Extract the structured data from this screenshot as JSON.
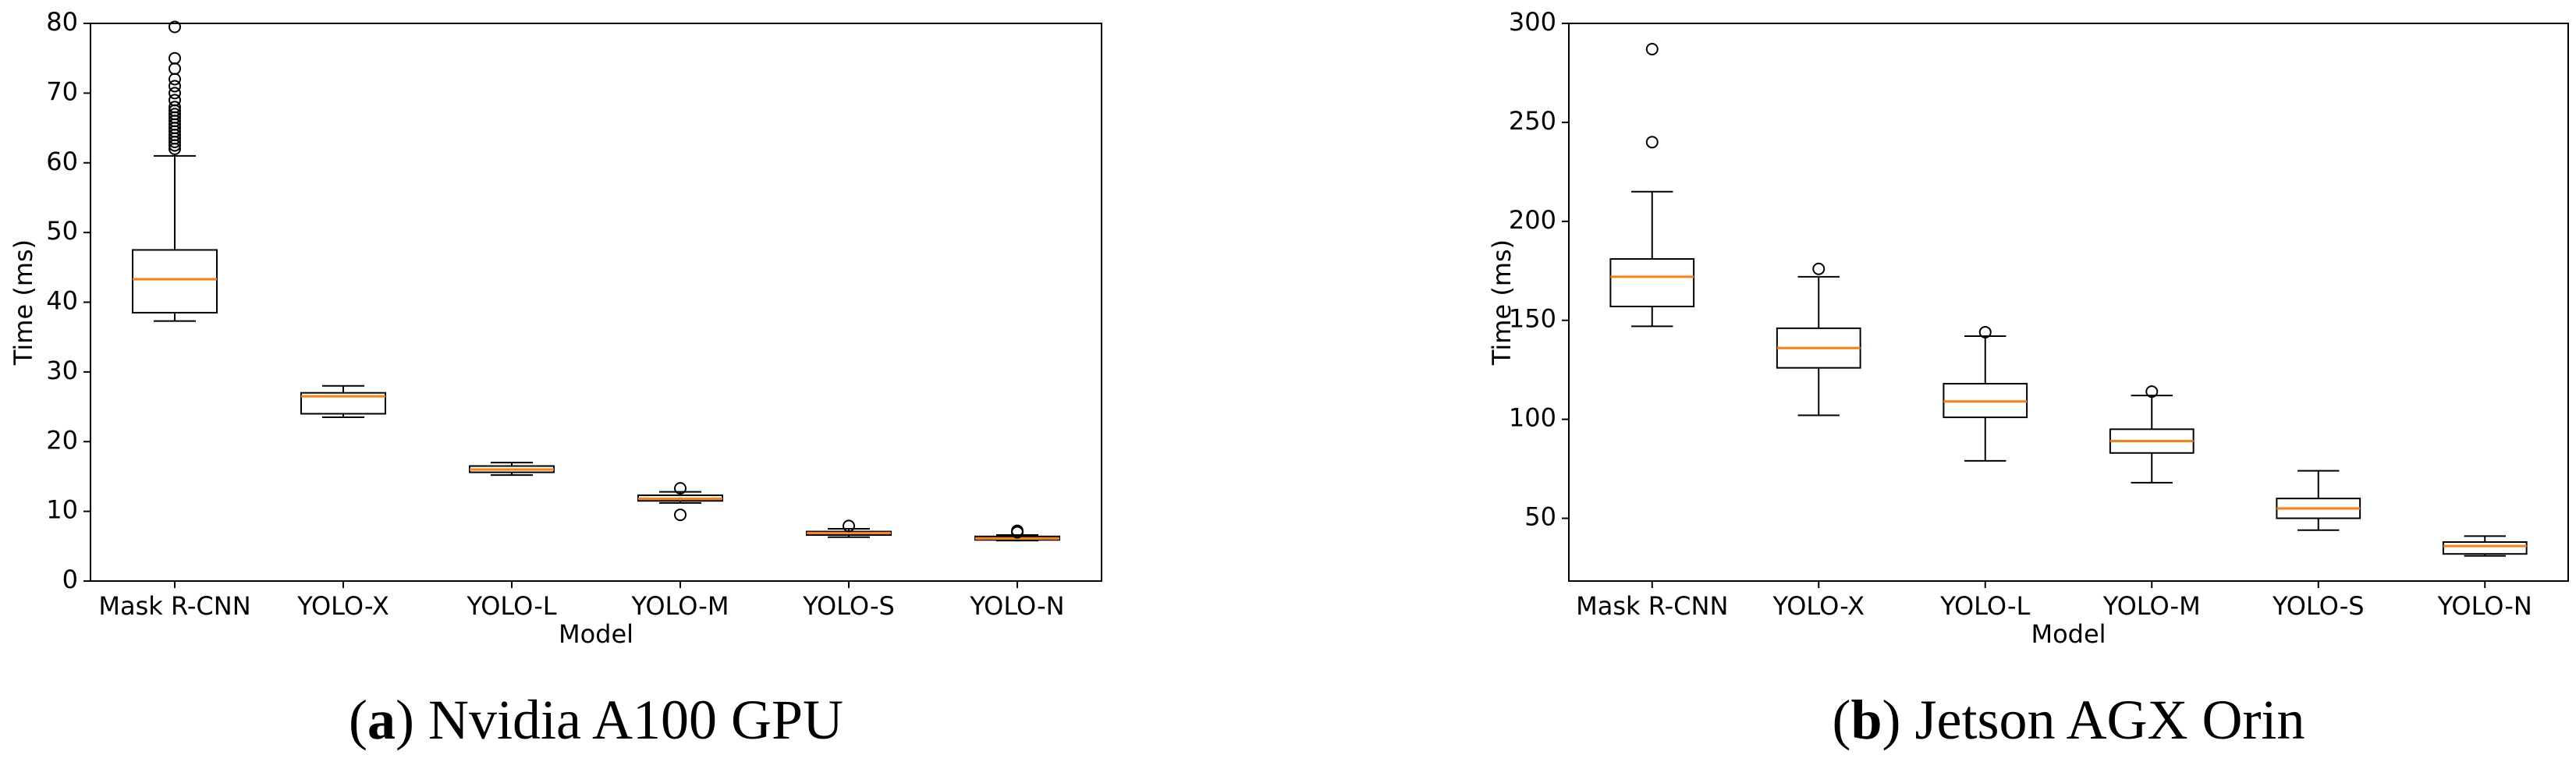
{
  "chart_data": [
    {
      "type": "box",
      "xlabel": "Model",
      "ylabel": "Time (ms)",
      "caption": {
        "open": "(",
        "label": "a",
        "text": ") Nvidia A100 GPU"
      },
      "categories": [
        "Mask R-CNN",
        "YOLO-X",
        "YOLO-L",
        "YOLO-M",
        "YOLO-S",
        "YOLO-N"
      ],
      "box_color": "#000000",
      "median_color": "#ff7f0e",
      "boxes": [
        {
          "whislo": 37.3,
          "q1": 38.5,
          "med": 43.3,
          "q3": 47.5,
          "whishi": 61,
          "fliers": [
            62,
            62.5,
            63,
            63.5,
            64,
            64.5,
            65,
            65.5,
            66,
            66.5,
            67,
            67.5,
            68,
            69,
            70,
            71,
            72,
            73.5,
            75,
            79.5
          ]
        },
        {
          "whislo": 23.5,
          "q1": 24,
          "med": 26.5,
          "q3": 27,
          "whishi": 28,
          "fliers": []
        },
        {
          "whislo": 15.2,
          "q1": 15.6,
          "med": 16,
          "q3": 16.5,
          "whishi": 17,
          "fliers": []
        },
        {
          "whislo": 11.2,
          "q1": 11.5,
          "med": 11.8,
          "q3": 12.3,
          "whishi": 12.8,
          "fliers": [
            9.5,
            13.3
          ]
        },
        {
          "whislo": 6.3,
          "q1": 6.6,
          "med": 6.9,
          "q3": 7.1,
          "whishi": 7.5,
          "fliers": [
            7.9
          ]
        },
        {
          "whislo": 5.8,
          "q1": 5.9,
          "med": 6.1,
          "q3": 6.4,
          "whishi": 6.6,
          "fliers": [
            7.0,
            7.2
          ]
        }
      ],
      "ylim": [
        0,
        80
      ],
      "yticks": [
        0,
        10,
        20,
        30,
        40,
        50,
        60,
        70,
        80
      ]
    },
    {
      "type": "box",
      "xlabel": "Model",
      "ylabel": "Time (ms)",
      "caption": {
        "open": "(",
        "label": "b",
        "text": ") Jetson AGX Orin"
      },
      "categories": [
        "Mask R-CNN",
        "YOLO-X",
        "YOLO-L",
        "YOLO-M",
        "YOLO-S",
        "YOLO-N"
      ],
      "box_color": "#000000",
      "median_color": "#ff7f0e",
      "boxes": [
        {
          "whislo": 147,
          "q1": 157,
          "med": 172,
          "q3": 181,
          "whishi": 215,
          "fliers": [
            240,
            287
          ]
        },
        {
          "whislo": 102,
          "q1": 126,
          "med": 136,
          "q3": 146,
          "whishi": 172,
          "fliers": [
            176
          ]
        },
        {
          "whislo": 79,
          "q1": 101,
          "med": 109,
          "q3": 118,
          "whishi": 142,
          "fliers": [
            144
          ]
        },
        {
          "whislo": 68,
          "q1": 83,
          "med": 89,
          "q3": 95,
          "whishi": 112,
          "fliers": [
            114
          ]
        },
        {
          "whislo": 44,
          "q1": 50,
          "med": 55,
          "q3": 60,
          "whishi": 74,
          "fliers": []
        },
        {
          "whislo": 31,
          "q1": 32,
          "med": 36,
          "q3": 38,
          "whishi": 41,
          "fliers": []
        }
      ],
      "ylim": [
        18.3,
        300
      ],
      "yticks": [
        50,
        100,
        150,
        200,
        250,
        300
      ]
    }
  ]
}
